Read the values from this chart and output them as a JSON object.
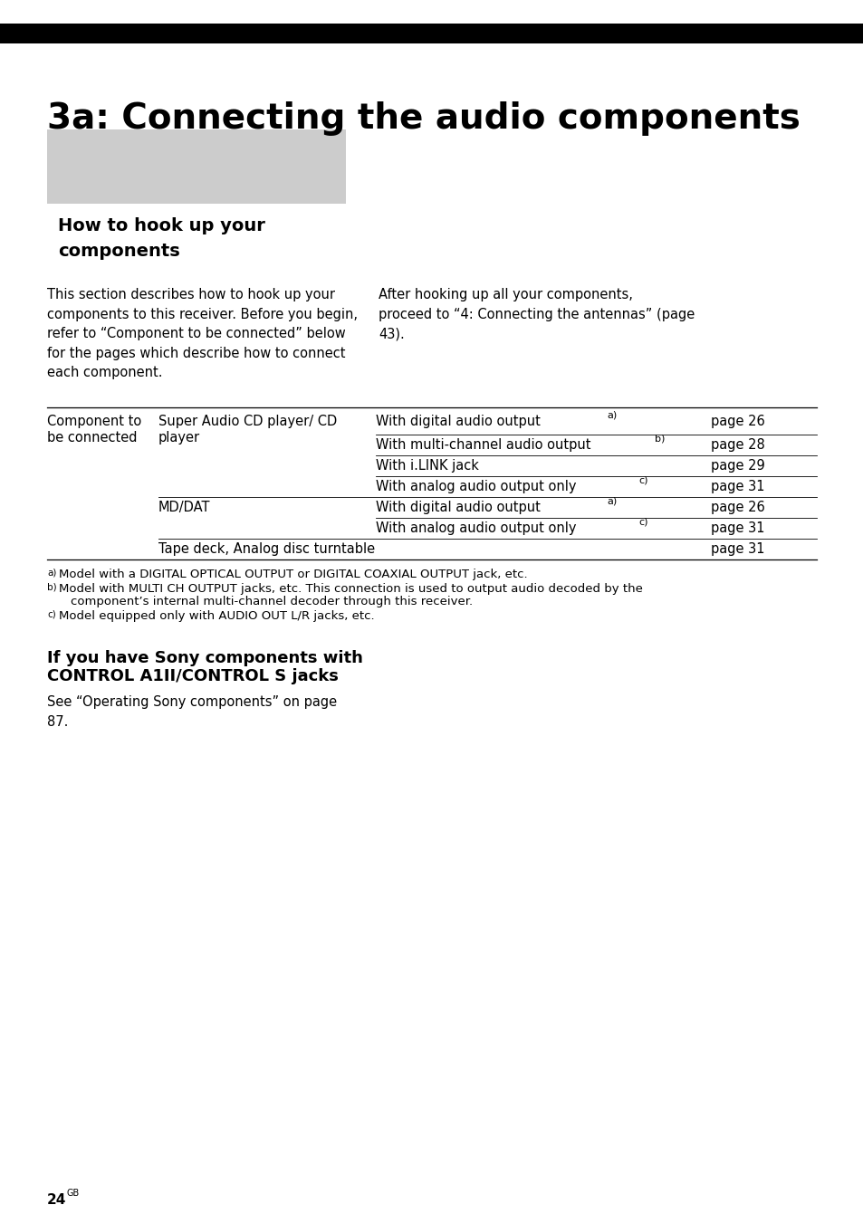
{
  "page_bg": "#ffffff",
  "top_bar_color": "#000000",
  "main_title": "3a: Connecting the audio components",
  "main_title_fontsize": 28,
  "main_title_fontweight": "bold",
  "subtitle_box_color": "#cccccc",
  "subtitle_text_line1": "How to hook up your",
  "subtitle_text_line2": "components",
  "subtitle_fontsize": 14,
  "subtitle_fontweight": "bold",
  "body_left_text": "This section describes how to hook up your\ncomponents to this receiver. Before you begin,\nrefer to “Component to be connected” below\nfor the pages which describe how to connect\neach component.",
  "body_right_text": "After hooking up all your components,\nproceed to “4: Connecting the antennas” (page\n43).",
  "body_fontsize": 10.5,
  "row_fontsize": 10.5,
  "footnote_a": "a)Model with a DIGITAL OPTICAL OUTPUT or DIGITAL COAXIAL OUTPUT jack, etc.",
  "footnote_b1": "b)Model with MULTI CH OUTPUT jacks, etc. This connection is used to output audio decoded by the",
  "footnote_b2": "   component’s internal multi-channel decoder through this receiver.",
  "footnote_c": "c)Model equipped only with AUDIO OUT L/R jacks, etc.",
  "footnote_fontsize": 9.5,
  "section2_title_line1": "If you have Sony components with",
  "section2_title_line2": "CONTROL A1II/CONTROL S jacks",
  "section2_title_fontsize": 13,
  "section2_title_fontweight": "bold",
  "section2_body": "See “Operating Sony components” on page\n87.",
  "page_num": "24",
  "page_num_sup": "GB"
}
